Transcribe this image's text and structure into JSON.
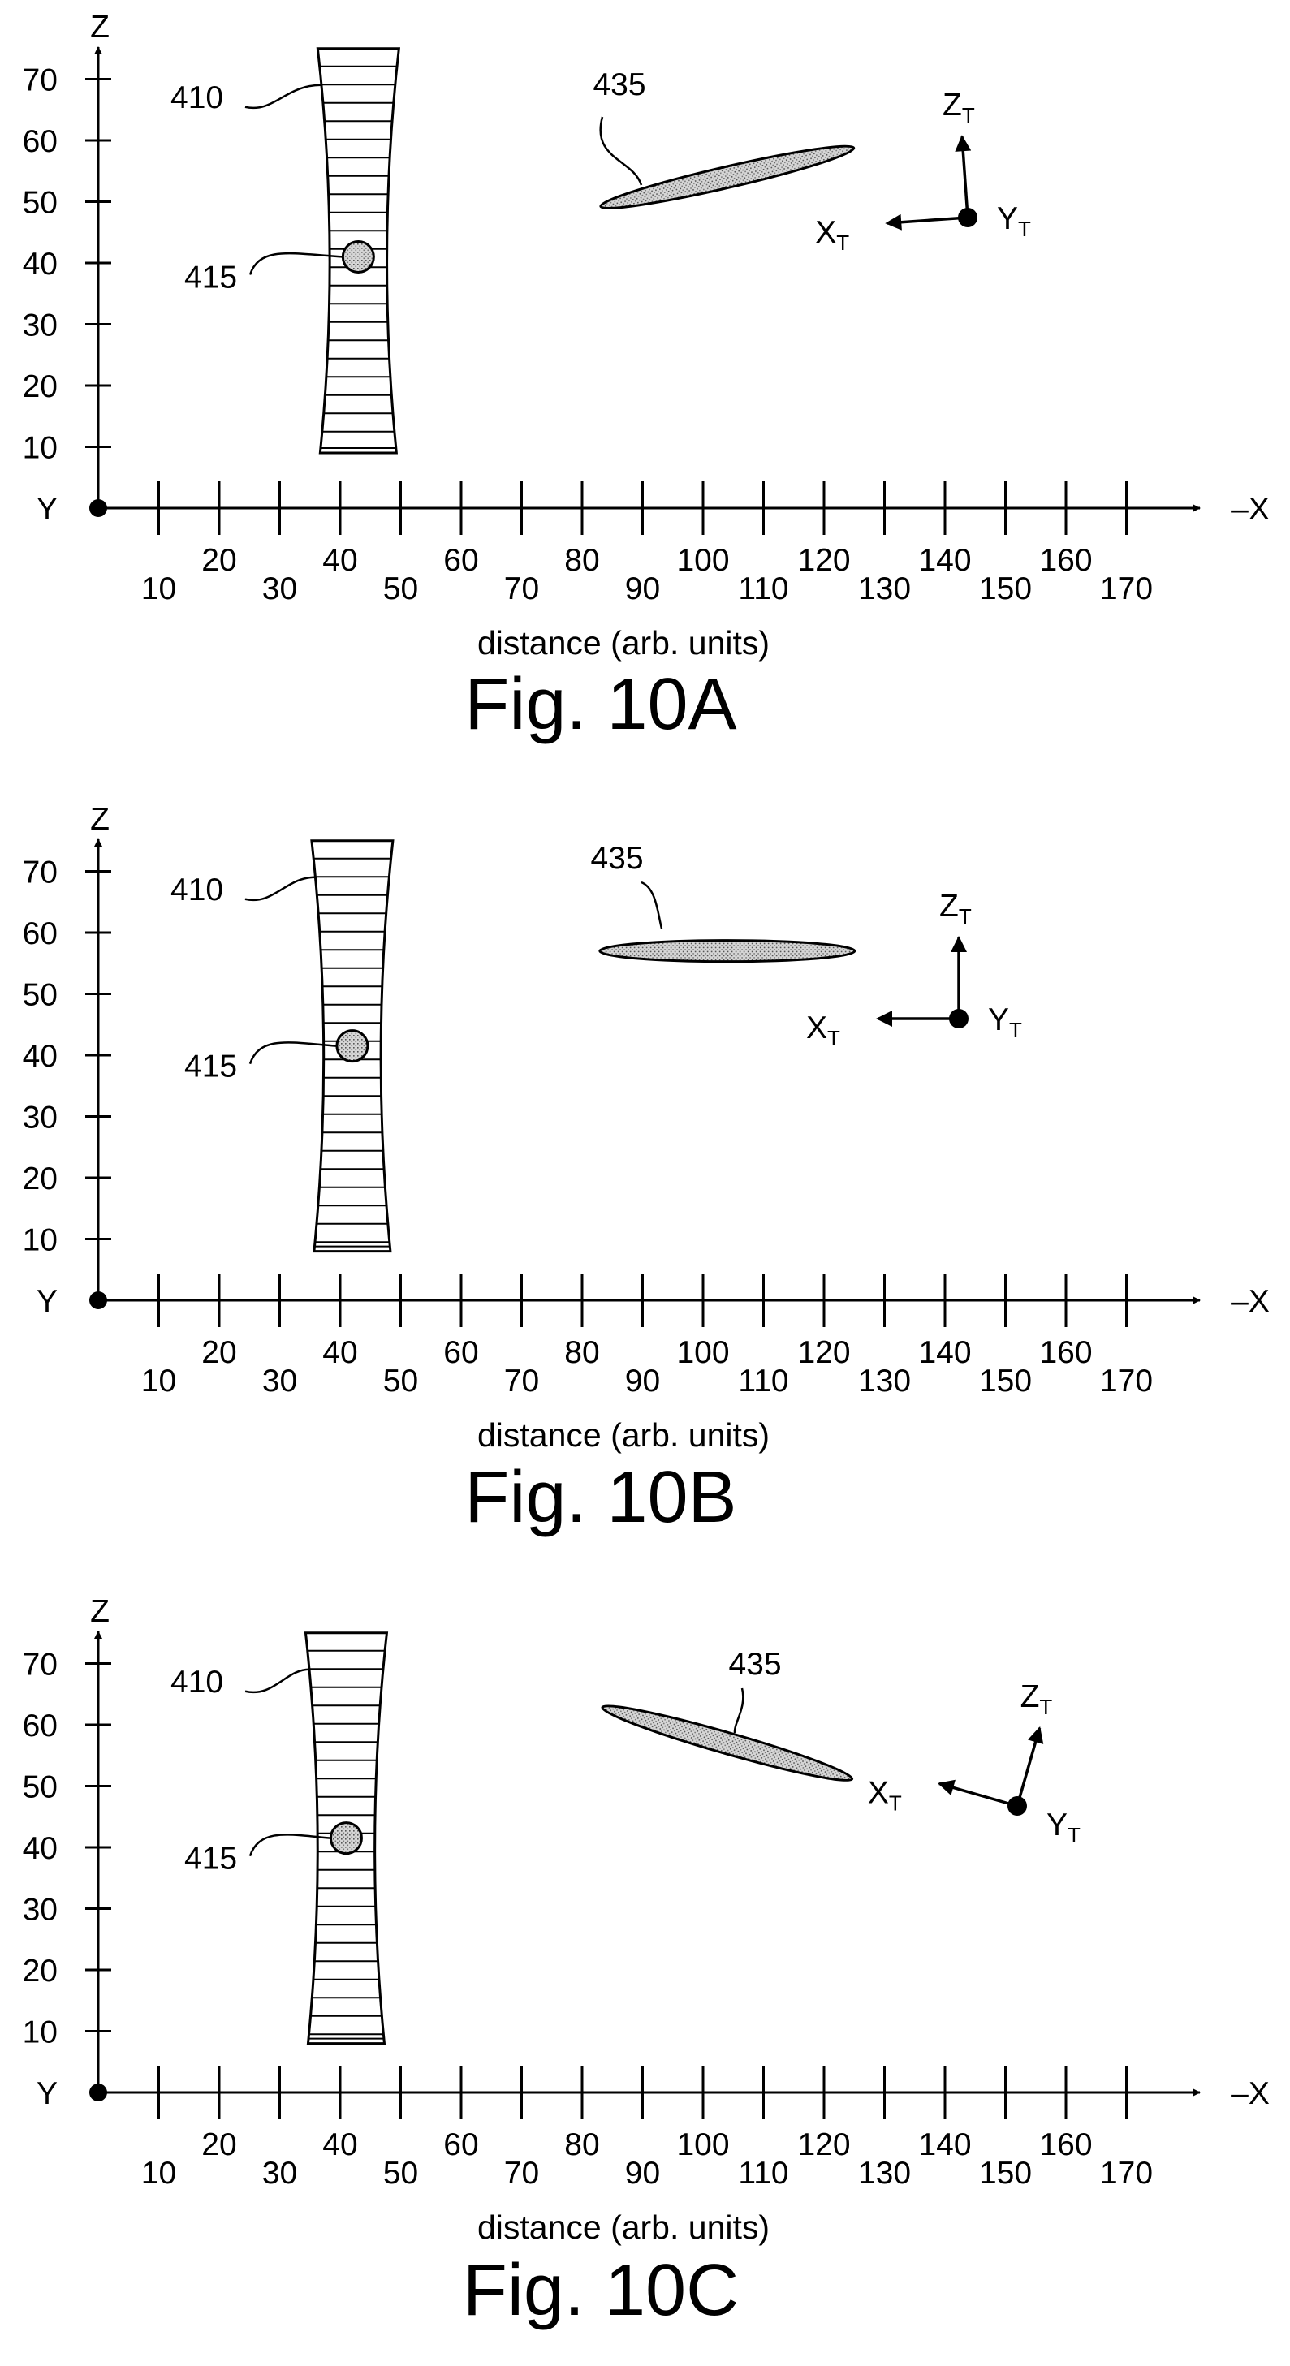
{
  "figures": [
    {
      "id": "fig-10a",
      "title": "Fig. 10A",
      "axis_z_label": "Z",
      "axis_y_label": "Y",
      "axis_x_label": "–X",
      "xlabel": "distance (arb. units)",
      "z_ticks": [
        "10",
        "20",
        "30",
        "40",
        "50",
        "60",
        "70"
      ],
      "x_ticks": [
        "10",
        "20",
        "30",
        "40",
        "50",
        "60",
        "70",
        "80",
        "90",
        "100",
        "110",
        "120",
        "130",
        "140",
        "150",
        "160",
        "170"
      ],
      "lens": {
        "ref": "410",
        "x_center": 43,
        "z_min": 9,
        "z_max": 75
      },
      "point": {
        "ref": "415",
        "x": 43,
        "z": 41
      },
      "target": {
        "ref": "435",
        "x_center": 104,
        "z_center": 54,
        "tilt_deg": 13
      },
      "frame": {
        "x_label": "X",
        "y_label": "Y",
        "z_label": "Z",
        "subscript": "T",
        "tilt_deg": 4
      }
    },
    {
      "id": "fig-10b",
      "title": "Fig. 10B",
      "axis_z_label": "Z",
      "axis_y_label": "Y",
      "axis_x_label": "–X",
      "xlabel": "distance (arb. units)",
      "z_ticks": [
        "10",
        "20",
        "30",
        "40",
        "50",
        "60",
        "70"
      ],
      "x_ticks": [
        "10",
        "20",
        "30",
        "40",
        "50",
        "60",
        "70",
        "80",
        "90",
        "100",
        "110",
        "120",
        "130",
        "140",
        "150",
        "160",
        "170"
      ],
      "lens": {
        "ref": "410",
        "x_center": 42,
        "z_min": 8,
        "z_max": 75
      },
      "point": {
        "ref": "415",
        "x": 42,
        "z": 41.5
      },
      "target": {
        "ref": "435",
        "x_center": 104,
        "z_center": 57,
        "tilt_deg": 0
      },
      "frame": {
        "x_label": "X",
        "y_label": "Y",
        "z_label": "Z",
        "subscript": "T",
        "tilt_deg": 0
      }
    },
    {
      "id": "fig-10c",
      "title": "Fig. 10C",
      "axis_z_label": "Z",
      "axis_y_label": "Y",
      "axis_x_label": "–X",
      "xlabel": "distance (arb. units)",
      "z_ticks": [
        "10",
        "20",
        "30",
        "40",
        "50",
        "60",
        "70"
      ],
      "x_ticks": [
        "10",
        "20",
        "30",
        "40",
        "50",
        "60",
        "70",
        "80",
        "90",
        "100",
        "110",
        "120",
        "130",
        "140",
        "150",
        "160",
        "170"
      ],
      "lens": {
        "ref": "410",
        "x_center": 41,
        "z_min": 8,
        "z_max": 75
      },
      "point": {
        "ref": "415",
        "x": 41,
        "z": 41.5
      },
      "target": {
        "ref": "435",
        "x_center": 104,
        "z_center": 57,
        "tilt_deg": -16
      },
      "frame": {
        "x_label": "X",
        "y_label": "Y",
        "z_label": "Z",
        "subscript": "T",
        "tilt_deg": -16
      }
    }
  ]
}
